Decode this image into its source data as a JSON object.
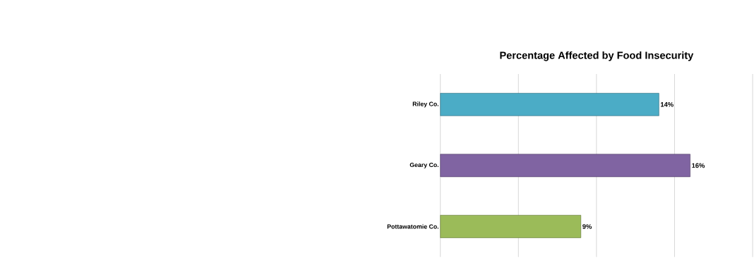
{
  "chart_data": {
    "type": "bar",
    "orientation": "horizontal",
    "title": "Percentage Affected by Food Insecurity",
    "categories": [
      "Riley Co.",
      "Geary Co.",
      "Pottawatomie Co."
    ],
    "values": [
      14,
      16,
      9
    ],
    "colors": [
      "#4bacc6",
      "#8064a2",
      "#9bbb59"
    ],
    "value_labels": [
      "14%",
      "16%",
      "9%"
    ],
    "xlim": [
      0,
      20
    ],
    "xticks": [
      {
        "value": 0,
        "label": null
      },
      {
        "value": 5,
        "label": null
      },
      {
        "value": 10,
        "label": null
      },
      {
        "value": 15,
        "label": null
      },
      {
        "value": 20,
        "label": null
      }
    ],
    "grid": "x",
    "tick_labels": "y"
  }
}
